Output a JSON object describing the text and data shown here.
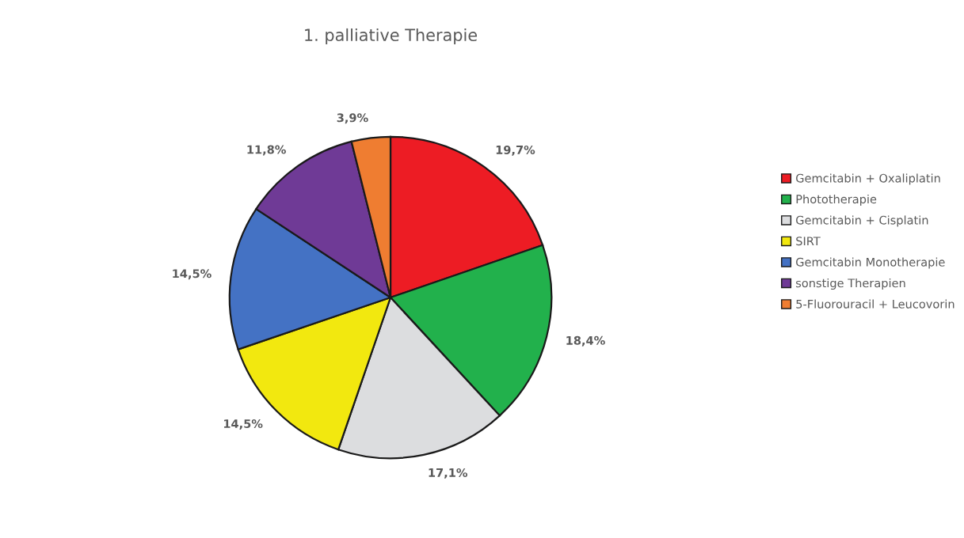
{
  "chart_data": {
    "type": "pie",
    "title": "1. palliative Therapie",
    "categories": [
      "Gemcitabin + Oxaliplatin",
      "Phototherapie",
      "Gemcitabin + Cisplatin",
      "SIRT",
      "Gemcitabin Monotherapie",
      "sonstige Therapien",
      "5-Fluorouracil + Leucovorin"
    ],
    "values": [
      19.7,
      18.4,
      17.1,
      14.5,
      14.5,
      11.8,
      3.9
    ],
    "value_labels": [
      "19,7%",
      "18,4%",
      "17,1%",
      "14,5%",
      "14,5%",
      "11,8%",
      "3,9%"
    ],
    "colors": [
      "#ed1c24",
      "#22b14c",
      "#dcdddf",
      "#f2e80f",
      "#4472c4",
      "#6f3a96",
      "#ef7d31"
    ],
    "legend": "right"
  }
}
